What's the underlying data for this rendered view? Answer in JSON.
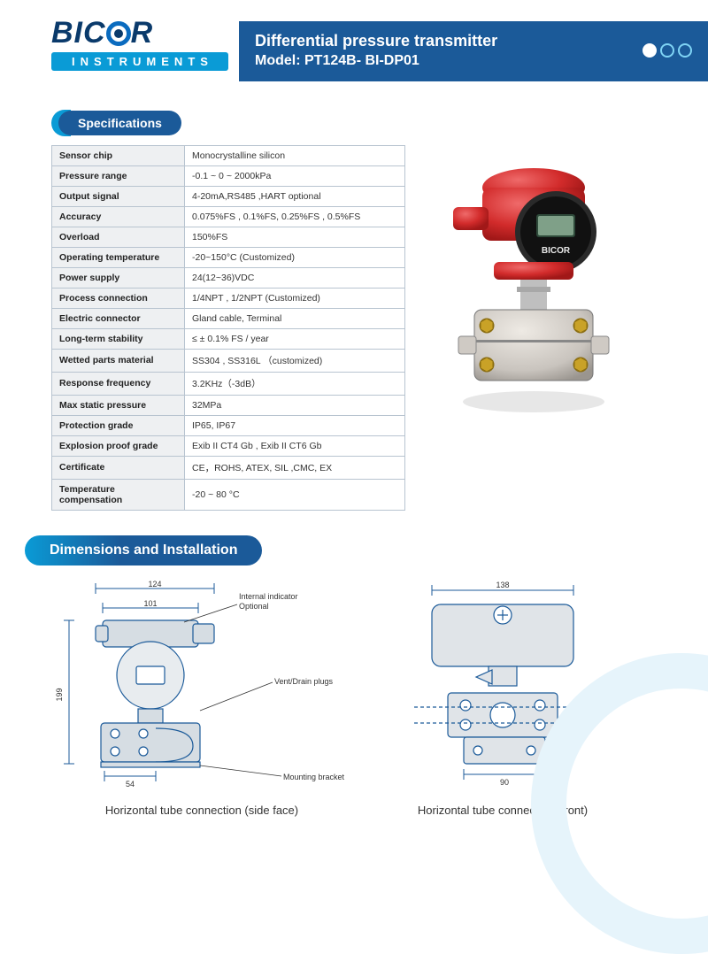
{
  "brand": {
    "name_left": "BIC",
    "name_right": "R",
    "subtitle": "INSTRUMENTS",
    "logo_color_dark": "#0a3a6b",
    "logo_color_light": "#0a9bd6"
  },
  "header": {
    "line1": "Differential pressure transmitter",
    "line2": "Model: PT124B- BI-DP01",
    "bg_color": "#1b5a99",
    "circle_count": 3,
    "circle_filled_index": 0
  },
  "sections": {
    "specs_title": "Specifications",
    "dims_title": "Dimensions and Installation"
  },
  "specs": {
    "rows": [
      {
        "k": "Sensor chip",
        "v": "Monocrystalline silicon"
      },
      {
        "k": "Pressure range",
        "v": "-0.1 ~ 0 ~ 2000kPa"
      },
      {
        "k": "Output signal",
        "v": "4-20mA,RS485 ,HART optional"
      },
      {
        "k": "Accuracy",
        "v": "0.075%FS , 0.1%FS, 0.25%FS , 0.5%FS"
      },
      {
        "k": "Overload",
        "v": "150%FS"
      },
      {
        "k": "Operating temperature",
        "v": "-20~150°C  (Customized)"
      },
      {
        "k": "Power supply",
        "v": "24(12~36)VDC"
      },
      {
        "k": "Process connection",
        "v": " 1/4NPT , 1/2NPT (Customized)"
      },
      {
        "k": "Electric connector",
        "v": "Gland cable, Terminal"
      },
      {
        "k": "Long-term stability",
        "v": "≤ ± 0.1% FS / year"
      },
      {
        "k": "Wetted parts material",
        "v": "SS304 , SS316L （customized)"
      },
      {
        "k": "Response frequency",
        "v": "3.2KHz（-3dB）"
      },
      {
        "k": "Max static pressure",
        "v": "32MPa"
      },
      {
        "k": "Protection grade",
        "v": "IP65, IP67"
      },
      {
        "k": "Explosion proof grade",
        "v": "Exib II CT4 Gb , Exib II CT6 Gb"
      },
      {
        "k": "Certificate",
        "v": "CE，ROHS, ATEX, SIL ,CMC, EX"
      },
      {
        "k": "Temperature compensation",
        "v": "-20 ~ 80 °C"
      }
    ],
    "header_bg": "#eef0f2",
    "border_color": "#b8c4d0"
  },
  "product_photo": {
    "head_color": "#d22b2b",
    "display_color": "#1a1a1a",
    "display_brand": "BICOR",
    "body_color": "#c9c4be",
    "bolt_color": "#c9a227",
    "neck_color": "#bfbfbf"
  },
  "diagrams": {
    "side": {
      "caption": "Horizontal tube connection (side face)",
      "dim_top": "124",
      "dim_top2": "101",
      "dim_left": "199",
      "dim_bottom": "54",
      "label_indicator": "Internal indicator\nOptional",
      "label_vent": "Vent/Drain plugs",
      "label_bracket": "Mounting bracket",
      "line_color": "#1b5a99",
      "fill_color": "#d6dde3"
    },
    "front": {
      "caption": "Horizontal tube connection (front)",
      "dim_top": "138",
      "dim_bottom": "90",
      "line_color": "#1b5a99",
      "fill_color": "#e0e4e8"
    }
  }
}
